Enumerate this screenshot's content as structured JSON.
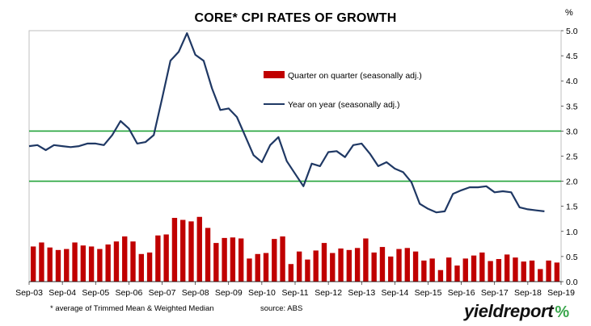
{
  "title": "CORE* CPI RATES OF GROWTH",
  "unit_label": "%",
  "footnote": "* average of Trimmed Mean & Weighted Median",
  "source": "source: ABS",
  "logo": {
    "text": "yieldreport",
    "symbol": "%"
  },
  "colors": {
    "bar": "#c00000",
    "line": "#1f3864",
    "ref_line": "#22a33a",
    "frame": "#bfbfbf"
  },
  "chart_data": {
    "type": "bar+line",
    "title": "CORE* CPI RATES OF GROWTH",
    "ylim": [
      0,
      5.0
    ],
    "y_ticks": [
      "0.0",
      "0.5",
      "1.0",
      "1.5",
      "2.0",
      "2.5",
      "3.0",
      "3.5",
      "4.0",
      "4.5",
      "5.0"
    ],
    "x_tick_labels": [
      "Sep-03",
      "Sep-04",
      "Sep-05",
      "Sep-06",
      "Sep-07",
      "Sep-08",
      "Sep-09",
      "Sep-10",
      "Sep-11",
      "Sep-12",
      "Sep-13",
      "Sep-14",
      "Sep-15",
      "Sep-16",
      "Sep-17",
      "Sep-18",
      "Sep-19"
    ],
    "reference_lines": [
      2.0,
      3.0
    ],
    "legend_position": "top-center",
    "series": [
      {
        "name": "Quarter on quarter (seasonally adj.)",
        "kind": "bar",
        "values": [
          0.7,
          0.78,
          0.68,
          0.63,
          0.65,
          0.78,
          0.72,
          0.7,
          0.65,
          0.74,
          0.8,
          0.9,
          0.8,
          0.55,
          0.58,
          0.92,
          0.94,
          1.27,
          1.23,
          1.2,
          1.29,
          1.07,
          0.77,
          0.87,
          0.88,
          0.86,
          0.46,
          0.55,
          0.57,
          0.85,
          0.9,
          0.35,
          0.6,
          0.44,
          0.62,
          0.77,
          0.57,
          0.66,
          0.63,
          0.67,
          0.86,
          0.58,
          0.69,
          0.5,
          0.65,
          0.67,
          0.6,
          0.42,
          0.46,
          0.23,
          0.48,
          0.32,
          0.46,
          0.52,
          0.58,
          0.41,
          0.45,
          0.54,
          0.48,
          0.4,
          0.42,
          0.25,
          0.42,
          0.38
        ]
      },
      {
        "name": "Year on year (seasonally adj.)",
        "kind": "line",
        "values": [
          2.7,
          2.72,
          2.62,
          2.72,
          2.7,
          2.68,
          2.7,
          2.75,
          2.75,
          2.72,
          2.92,
          3.2,
          3.05,
          2.75,
          2.78,
          2.92,
          3.65,
          4.4,
          4.58,
          4.95,
          4.52,
          4.4,
          3.85,
          3.42,
          3.45,
          3.28,
          2.9,
          2.52,
          2.38,
          2.72,
          2.88,
          2.4,
          2.15,
          1.9,
          2.35,
          2.3,
          2.58,
          2.6,
          2.48,
          2.72,
          2.75,
          2.55,
          2.3,
          2.38,
          2.25,
          2.18,
          1.98,
          1.55,
          1.45,
          1.38,
          1.4,
          1.75,
          1.82,
          1.88,
          1.88,
          1.9,
          1.78,
          1.8,
          1.78,
          1.48,
          1.44,
          1.42,
          1.4
        ]
      }
    ]
  }
}
